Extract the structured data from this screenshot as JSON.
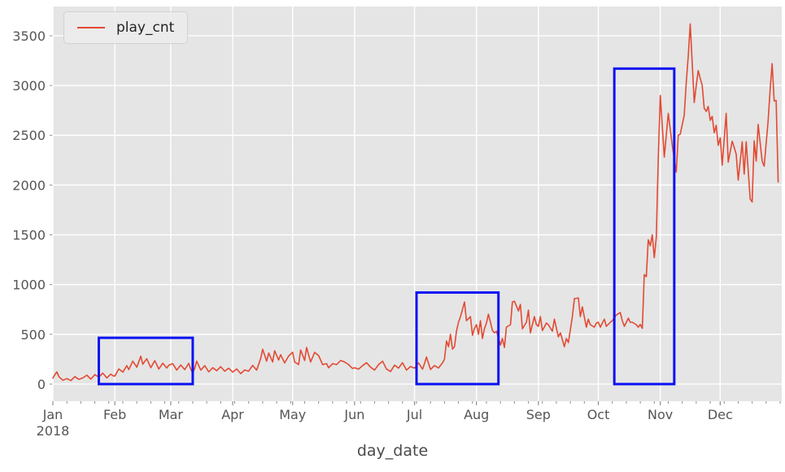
{
  "figure": {
    "background": "#ffffff"
  },
  "chart_data": {
    "type": "line",
    "title": "",
    "xlabel": "day_date",
    "ylabel": "",
    "plot_background": "#e5e5e5",
    "grid_color": "#ffffff",
    "tick_color": "#8e8e8e",
    "legend": {
      "entries": [
        "play_cnt"
      ],
      "position": "upper left"
    },
    "x_axis": {
      "year_label": "2018",
      "tick_labels": [
        "Jan",
        "Feb",
        "Mar",
        "Apr",
        "May",
        "Jun",
        "Jul",
        "Aug",
        "Sep",
        "Oct",
        "Nov",
        "Dec"
      ],
      "tick_day_of_year": [
        0,
        31,
        59,
        90,
        120,
        151,
        181,
        212,
        243,
        273,
        304,
        334
      ],
      "minor_tick_interval_days": 7,
      "xlim_days": [
        0,
        364.8
      ]
    },
    "y_axis": {
      "tick_labels": [
        "0",
        "500",
        "1000",
        "1500",
        "2000",
        "2500",
        "3000",
        "3500"
      ],
      "tick_values": [
        0,
        500,
        1000,
        1500,
        2000,
        2500,
        3000,
        3500
      ],
      "ylim": [
        -172,
        3794
      ]
    },
    "series": [
      {
        "name": "play_cnt",
        "color": "#E24A33",
        "points": [
          [
            0,
            60
          ],
          [
            1,
            95
          ],
          [
            2,
            122
          ],
          [
            3,
            75
          ],
          [
            5,
            38
          ],
          [
            7,
            55
          ],
          [
            9,
            35
          ],
          [
            11,
            75
          ],
          [
            13,
            48
          ],
          [
            15,
            62
          ],
          [
            17,
            90
          ],
          [
            19,
            50
          ],
          [
            21,
            95
          ],
          [
            23,
            70
          ],
          [
            25,
            110
          ],
          [
            27,
            62
          ],
          [
            29,
            100
          ],
          [
            30,
            85
          ],
          [
            31,
            80
          ],
          [
            33,
            152
          ],
          [
            35,
            120
          ],
          [
            37,
            185
          ],
          [
            38,
            145
          ],
          [
            40,
            230
          ],
          [
            42,
            170
          ],
          [
            44,
            280
          ],
          [
            45,
            200
          ],
          [
            47,
            255
          ],
          [
            49,
            165
          ],
          [
            51,
            235
          ],
          [
            53,
            152
          ],
          [
            55,
            210
          ],
          [
            57,
            162
          ],
          [
            58,
            190
          ],
          [
            60,
            205
          ],
          [
            62,
            140
          ],
          [
            64,
            192
          ],
          [
            66,
            145
          ],
          [
            68,
            208
          ],
          [
            69,
            150
          ],
          [
            70,
            110
          ],
          [
            71,
            160
          ],
          [
            72,
            230
          ],
          [
            74,
            140
          ],
          [
            76,
            185
          ],
          [
            78,
            122
          ],
          [
            80,
            165
          ],
          [
            82,
            135
          ],
          [
            84,
            175
          ],
          [
            86,
            130
          ],
          [
            88,
            160
          ],
          [
            90,
            120
          ],
          [
            92,
            152
          ],
          [
            94,
            105
          ],
          [
            96,
            142
          ],
          [
            98,
            130
          ],
          [
            100,
            188
          ],
          [
            102,
            140
          ],
          [
            104,
            255
          ],
          [
            105,
            350
          ],
          [
            107,
            230
          ],
          [
            108,
            312
          ],
          [
            110,
            222
          ],
          [
            111,
            335
          ],
          [
            113,
            242
          ],
          [
            114,
            295
          ],
          [
            116,
            212
          ],
          [
            118,
            282
          ],
          [
            120,
            320
          ],
          [
            121,
            222
          ],
          [
            123,
            196
          ],
          [
            124,
            343
          ],
          [
            126,
            237
          ],
          [
            127,
            368
          ],
          [
            129,
            222
          ],
          [
            131,
            319
          ],
          [
            133,
            286
          ],
          [
            135,
            196
          ],
          [
            137,
            205
          ],
          [
            138,
            164
          ],
          [
            140,
            205
          ],
          [
            142,
            196
          ],
          [
            144,
            237
          ],
          [
            146,
            222
          ],
          [
            148,
            196
          ],
          [
            150,
            157
          ],
          [
            151,
            164
          ],
          [
            153,
            150
          ],
          [
            155,
            185
          ],
          [
            157,
            215
          ],
          [
            159,
            170
          ],
          [
            161,
            140
          ],
          [
            163,
            196
          ],
          [
            165,
            230
          ],
          [
            167,
            150
          ],
          [
            169,
            126
          ],
          [
            171,
            190
          ],
          [
            173,
            160
          ],
          [
            175,
            215
          ],
          [
            177,
            140
          ],
          [
            179,
            176
          ],
          [
            181,
            160
          ],
          [
            183,
            212
          ],
          [
            185,
            150
          ],
          [
            186,
            205
          ],
          [
            187,
            272
          ],
          [
            189,
            147
          ],
          [
            191,
            186
          ],
          [
            193,
            162
          ],
          [
            195,
            212
          ],
          [
            196,
            250
          ],
          [
            197,
            433
          ],
          [
            198,
            376
          ],
          [
            199,
            500
          ],
          [
            200,
            351
          ],
          [
            201,
            376
          ],
          [
            202,
            530
          ],
          [
            203,
            621
          ],
          [
            204,
            678
          ],
          [
            206,
            825
          ],
          [
            207,
            637
          ],
          [
            209,
            678
          ],
          [
            210,
            490
          ],
          [
            211,
            560
          ],
          [
            212,
            597
          ],
          [
            213,
            500
          ],
          [
            214,
            637
          ],
          [
            215,
            458
          ],
          [
            216,
            556
          ],
          [
            217,
            613
          ],
          [
            218,
            702
          ],
          [
            220,
            539
          ],
          [
            221,
            515
          ],
          [
            222,
            531
          ],
          [
            224,
            392
          ],
          [
            225,
            458
          ],
          [
            226,
            368
          ],
          [
            227,
            572
          ],
          [
            229,
            597
          ],
          [
            230,
            825
          ],
          [
            231,
            833
          ],
          [
            233,
            735
          ],
          [
            234,
            800
          ],
          [
            235,
            556
          ],
          [
            237,
            621
          ],
          [
            238,
            744
          ],
          [
            239,
            515
          ],
          [
            241,
            678
          ],
          [
            242,
            597
          ],
          [
            243,
            580
          ],
          [
            244,
            678
          ],
          [
            245,
            539
          ],
          [
            247,
            613
          ],
          [
            248,
            597
          ],
          [
            250,
            531
          ],
          [
            251,
            652
          ],
          [
            253,
            474
          ],
          [
            254,
            515
          ],
          [
            256,
            376
          ],
          [
            257,
            458
          ],
          [
            258,
            417
          ],
          [
            260,
            678
          ],
          [
            261,
            858
          ],
          [
            263,
            866
          ],
          [
            264,
            678
          ],
          [
            265,
            776
          ],
          [
            267,
            572
          ],
          [
            268,
            652
          ],
          [
            269,
            597
          ],
          [
            271,
            572
          ],
          [
            272,
            613
          ],
          [
            273,
            621
          ],
          [
            274,
            572
          ],
          [
            276,
            652
          ],
          [
            277,
            580
          ],
          [
            279,
            621
          ],
          [
            280,
            637
          ],
          [
            282,
            694
          ],
          [
            284,
            719
          ],
          [
            285,
            637
          ],
          [
            286,
            580
          ],
          [
            288,
            662
          ],
          [
            289,
            621
          ],
          [
            290,
            621
          ],
          [
            292,
            597
          ],
          [
            293,
            572
          ],
          [
            294,
            600
          ],
          [
            295,
            560
          ],
          [
            296,
            1100
          ],
          [
            297,
            1080
          ],
          [
            298,
            1450
          ],
          [
            299,
            1390
          ],
          [
            300,
            1500
          ],
          [
            301,
            1270
          ],
          [
            302,
            1475
          ],
          [
            303,
            2270
          ],
          [
            304,
            2900
          ],
          [
            306,
            2280
          ],
          [
            308,
            2720
          ],
          [
            310,
            2400
          ],
          [
            312,
            2130
          ],
          [
            313,
            2500
          ],
          [
            314,
            2510
          ],
          [
            316,
            2700
          ],
          [
            317,
            3030
          ],
          [
            318,
            3300
          ],
          [
            319,
            3620
          ],
          [
            321,
            2830
          ],
          [
            322,
            3000
          ],
          [
            323,
            3150
          ],
          [
            325,
            3000
          ],
          [
            326,
            2770
          ],
          [
            327,
            2740
          ],
          [
            328,
            2790
          ],
          [
            329,
            2650
          ],
          [
            330,
            2690
          ],
          [
            331,
            2525
          ],
          [
            332,
            2600
          ],
          [
            333,
            2400
          ],
          [
            334,
            2475
          ],
          [
            335,
            2200
          ],
          [
            337,
            2720
          ],
          [
            338,
            2230
          ],
          [
            340,
            2440
          ],
          [
            341,
            2380
          ],
          [
            342,
            2310
          ],
          [
            343,
            2050
          ],
          [
            345,
            2435
          ],
          [
            346,
            2110
          ],
          [
            347,
            2435
          ],
          [
            349,
            1860
          ],
          [
            350,
            1830
          ],
          [
            351,
            2445
          ],
          [
            352,
            2240
          ],
          [
            353,
            2610
          ],
          [
            355,
            2240
          ],
          [
            356,
            2190
          ],
          [
            358,
            2650
          ],
          [
            359,
            2970
          ],
          [
            360,
            3220
          ],
          [
            361,
            2845
          ],
          [
            362,
            2850
          ],
          [
            363,
            2030
          ]
        ]
      }
    ],
    "highlight_boxes": [
      {
        "x_start_day": 23,
        "x_end_day": 70,
        "y_min": 0,
        "y_max": 465,
        "color": "#0B12F2",
        "linewidth": 3
      },
      {
        "x_start_day": 182,
        "x_end_day": 223,
        "y_min": 0,
        "y_max": 920,
        "color": "#0B12F2",
        "linewidth": 3
      },
      {
        "x_start_day": 281,
        "x_end_day": 311,
        "y_min": 0,
        "y_max": 3170,
        "color": "#0B12F2",
        "linewidth": 3
      }
    ]
  }
}
